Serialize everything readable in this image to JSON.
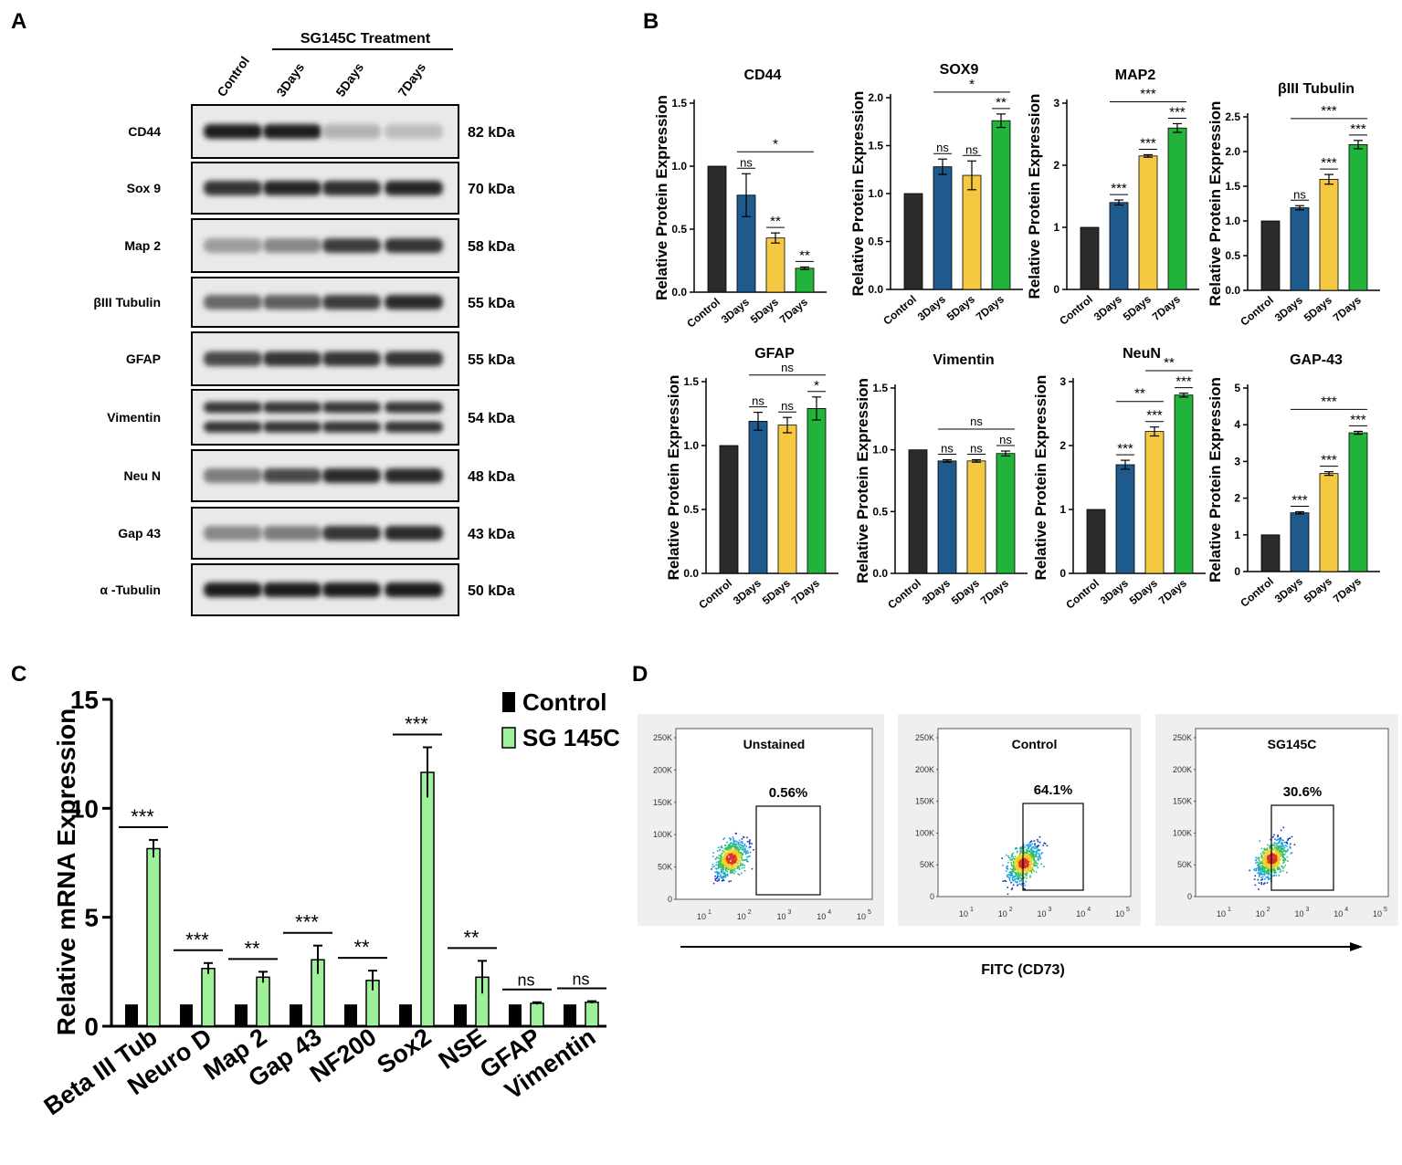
{
  "panels": {
    "a": "A",
    "b": "B",
    "c": "C",
    "d": "D"
  },
  "western_blot": {
    "treatment_label": "SG145C Treatment",
    "lanes": [
      "Control",
      "3Days",
      "5Days",
      "7Days"
    ],
    "rows": [
      {
        "protein": "CD44",
        "kda": "82 kDa",
        "intensity": [
          0.95,
          0.95,
          0.25,
          0.2
        ]
      },
      {
        "protein": "Sox 9",
        "kda": "70 kDa",
        "intensity": [
          0.85,
          0.92,
          0.88,
          0.92
        ]
      },
      {
        "protein": "Map 2",
        "kda": "58 kDa",
        "intensity": [
          0.35,
          0.45,
          0.8,
          0.85
        ]
      },
      {
        "protein": "βIII Tubulin",
        "kda": "55 kDa",
        "intensity": [
          0.6,
          0.65,
          0.8,
          0.9
        ]
      },
      {
        "protein": "GFAP",
        "kda": "55 kDa",
        "intensity": [
          0.75,
          0.85,
          0.85,
          0.85
        ]
      },
      {
        "protein": "Vimentin",
        "kda": "54 kDa",
        "intensity": [
          0.85,
          0.85,
          0.85,
          0.85
        ]
      },
      {
        "protein": "Neu N",
        "kda": "48 kDa",
        "intensity": [
          0.5,
          0.75,
          0.9,
          0.9
        ]
      },
      {
        "protein": "Gap 43",
        "kda": "43 kDa",
        "intensity": [
          0.45,
          0.5,
          0.85,
          0.9
        ]
      },
      {
        "protein": "α -Tubulin",
        "kda": "50 kDa",
        "intensity": [
          0.95,
          0.95,
          0.95,
          0.95
        ]
      }
    ]
  },
  "chart_data": [
    {
      "type": "bar",
      "title": "CD44",
      "ylabel": "Relative Protein Expression",
      "categories": [
        "Control",
        "3Days",
        "5Days",
        "7Days"
      ],
      "values": [
        1.0,
        0.77,
        0.43,
        0.19
      ],
      "errors": [
        0,
        0.17,
        0.04,
        0.01
      ],
      "ylim": [
        0,
        1.5
      ],
      "yticks": [
        "0.0",
        "0.5",
        "1.0",
        "1.5"
      ],
      "sig": [
        "",
        "ns",
        "**",
        "**"
      ],
      "bracket": {
        "from": 1,
        "to": 3,
        "label": "*"
      },
      "colors": [
        "#2b2b2b",
        "#1f5a8c",
        "#f5c842",
        "#22b33a"
      ]
    },
    {
      "type": "bar",
      "title": "SOX9",
      "ylabel": "Relative Protein Expression",
      "categories": [
        "Control",
        "3Days",
        "5Days",
        "7Days"
      ],
      "values": [
        1.0,
        1.28,
        1.19,
        1.76
      ],
      "errors": [
        0,
        0.08,
        0.15,
        0.07
      ],
      "ylim": [
        0,
        2.0
      ],
      "yticks": [
        "0.0",
        "0.5",
        "1.0",
        "1.5",
        "2.0"
      ],
      "sig": [
        "",
        "ns",
        "ns",
        "**"
      ],
      "bracket": {
        "from": 1,
        "to": 3,
        "label": "*"
      },
      "colors": [
        "#2b2b2b",
        "#1f5a8c",
        "#f5c842",
        "#22b33a"
      ]
    },
    {
      "type": "bar",
      "title": "MAP2",
      "ylabel": "Relative Protein Expression",
      "categories": [
        "Control",
        "3Days",
        "5Days",
        "7Days"
      ],
      "values": [
        1.0,
        1.4,
        2.15,
        2.6
      ],
      "errors": [
        0,
        0.04,
        0.02,
        0.07
      ],
      "ylim": [
        0,
        3
      ],
      "yticks": [
        "0",
        "1",
        "2",
        "3"
      ],
      "sig": [
        "",
        "***",
        "***",
        "***"
      ],
      "bracket": {
        "from": 1,
        "to": 3,
        "label": "***"
      },
      "colors": [
        "#2b2b2b",
        "#1f5a8c",
        "#f5c842",
        "#22b33a"
      ]
    },
    {
      "type": "bar",
      "title": "βIII Tubulin",
      "ylabel": "Relative Protein Expression",
      "categories": [
        "Control",
        "3Days",
        "5Days",
        "7Days"
      ],
      "values": [
        1.0,
        1.19,
        1.6,
        2.1
      ],
      "errors": [
        0,
        0.03,
        0.07,
        0.06
      ],
      "ylim": [
        0,
        2.5
      ],
      "yticks": [
        "0.0",
        "0.5",
        "1.0",
        "1.5",
        "2.0",
        "2.5"
      ],
      "sig": [
        "",
        "ns",
        "***",
        "***"
      ],
      "bracket": {
        "from": 1,
        "to": 3,
        "label": "***"
      },
      "colors": [
        "#2b2b2b",
        "#1f5a8c",
        "#f5c842",
        "#22b33a"
      ]
    },
    {
      "type": "bar",
      "title": "GFAP",
      "ylabel": "Relative Protein Expression",
      "categories": [
        "Control",
        "3Days",
        "5Days",
        "7Days"
      ],
      "values": [
        1.0,
        1.19,
        1.16,
        1.29
      ],
      "errors": [
        0,
        0.07,
        0.06,
        0.09
      ],
      "ylim": [
        0,
        1.5
      ],
      "yticks": [
        "0.0",
        "0.5",
        "1.0",
        "1.5"
      ],
      "sig": [
        "",
        "ns",
        "ns",
        "*"
      ],
      "bracket": {
        "from": 1,
        "to": 3,
        "label": "ns"
      },
      "colors": [
        "#2b2b2b",
        "#1f5a8c",
        "#f5c842",
        "#22b33a"
      ]
    },
    {
      "type": "bar",
      "title": "Vimentin",
      "ylabel": "Relative Protein Expression",
      "categories": [
        "Control",
        "3Days",
        "5Days",
        "7Days"
      ],
      "values": [
        1.0,
        0.91,
        0.91,
        0.97
      ],
      "errors": [
        0,
        0.01,
        0.01,
        0.02
      ],
      "ylim": [
        0,
        1.5
      ],
      "yticks": [
        "0.0",
        "0.5",
        "1.0",
        "1.5"
      ],
      "sig": [
        "",
        "ns",
        "ns",
        "ns"
      ],
      "bracket": {
        "from": 1,
        "to": 3,
        "label": "ns"
      },
      "colors": [
        "#2b2b2b",
        "#1f5a8c",
        "#f5c842",
        "#22b33a"
      ]
    },
    {
      "type": "bar",
      "title": "NeuN",
      "ylabel": "Relative Protein Expression",
      "categories": [
        "Control",
        "3Days",
        "5Days",
        "7Days"
      ],
      "values": [
        1.0,
        1.7,
        2.22,
        2.79
      ],
      "errors": [
        0,
        0.07,
        0.07,
        0.03
      ],
      "ylim": [
        0,
        3
      ],
      "yticks": [
        "0",
        "1",
        "2",
        "3"
      ],
      "sig": [
        "",
        "***",
        "***",
        "***"
      ],
      "brackets": [
        {
          "from": 1,
          "to": 2,
          "label": "**"
        },
        {
          "from": 2,
          "to": 3,
          "label": "**"
        }
      ],
      "colors": [
        "#2b2b2b",
        "#1f5a8c",
        "#f5c842",
        "#22b33a"
      ]
    },
    {
      "type": "bar",
      "title": "GAP-43",
      "ylabel": "Relative Protein Expression",
      "categories": [
        "Control",
        "3Days",
        "5Days",
        "7Days"
      ],
      "values": [
        1.0,
        1.6,
        2.67,
        3.78
      ],
      "errors": [
        0,
        0.03,
        0.05,
        0.04
      ],
      "ylim": [
        0,
        5
      ],
      "yticks": [
        "0",
        "1",
        "2",
        "3",
        "4",
        "5"
      ],
      "sig": [
        "",
        "***",
        "***",
        "***"
      ],
      "bracket": {
        "from": 1,
        "to": 3,
        "label": "***"
      },
      "colors": [
        "#2b2b2b",
        "#1f5a8c",
        "#f5c842",
        "#22b33a"
      ]
    },
    {
      "type": "bar",
      "ylabel": "Relative mRNA Expression",
      "categories": [
        "Beta III Tub",
        "Neuro D",
        "Map 2",
        "Gap 43",
        "NF200",
        "Sox2",
        "NSE",
        "GFAP",
        "Vimentin"
      ],
      "ylim": [
        0,
        15
      ],
      "yticks": [
        "0",
        "5",
        "10",
        "15"
      ],
      "series": [
        {
          "name": "Control",
          "color": "#000000",
          "values": [
            1,
            1,
            1,
            1,
            1,
            1,
            1,
            1,
            1
          ],
          "errors": [
            0,
            0,
            0,
            0,
            0,
            0,
            0,
            0,
            0
          ]
        },
        {
          "name": "SG 145C",
          "color": "#9ef09a",
          "values": [
            8.15,
            2.65,
            2.25,
            3.05,
            2.1,
            11.65,
            2.25,
            1.05,
            1.1
          ],
          "errors": [
            0.4,
            0.25,
            0.25,
            0.65,
            0.45,
            1.15,
            0.75,
            0.05,
            0.05
          ]
        }
      ],
      "sig": [
        "***",
        "***",
        "**",
        "***",
        "**",
        "***",
        "**",
        "ns",
        "ns"
      ]
    }
  ],
  "flow": {
    "xaxis_label": "FITC (CD73)",
    "yticks": [
      "250K",
      "200K",
      "150K",
      "100K",
      "50K",
      "0"
    ],
    "xticks": [
      "10",
      "10",
      "10",
      "10",
      "10"
    ],
    "xtick_exp": [
      "1",
      "2",
      "3",
      "4",
      "5"
    ],
    "plots": [
      {
        "title": "Unstained",
        "percent": "0.56%"
      },
      {
        "title": "Control",
        "percent": "64.1%"
      },
      {
        "title": "SG145C",
        "percent": "30.6%"
      }
    ]
  }
}
